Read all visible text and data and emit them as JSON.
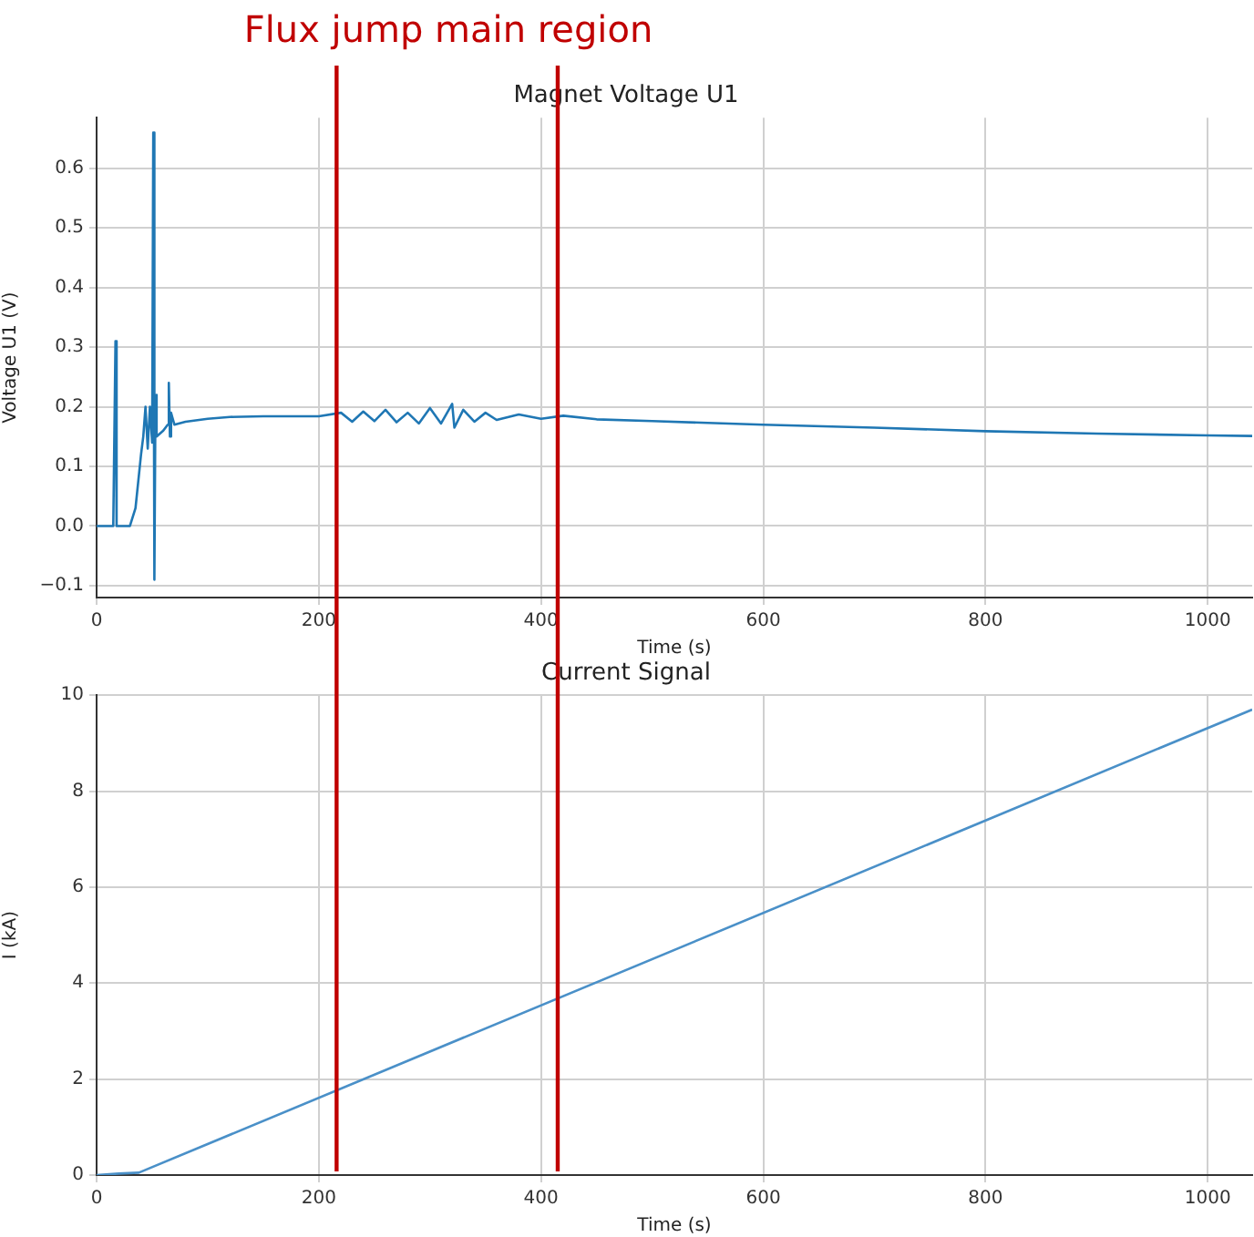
{
  "chart_data": [
    {
      "type": "line",
      "title": "Magnet Voltage U1",
      "xlabel": "Time (s)",
      "ylabel": "Voltage U1 (V)",
      "annotations": [
        "Flux jump main region"
      ],
      "series": [
        {
          "color": "#1f77b4",
          "x": [
            0,
            10,
            15,
            17,
            18,
            20,
            30,
            35,
            40,
            42,
            44,
            46,
            48,
            50,
            51,
            52,
            53,
            54,
            60,
            64,
            65,
            66,
            67,
            70,
            80,
            100,
            120,
            150,
            200,
            220,
            230,
            240,
            250,
            260,
            270,
            280,
            290,
            300,
            310,
            320,
            322,
            330,
            340,
            350,
            360,
            380,
            400,
            420,
            450,
            500,
            550,
            600,
            700,
            800,
            900,
            1000,
            1040
          ],
          "values": [
            0,
            0,
            0,
            0.31,
            0,
            0,
            0,
            0.03,
            0.12,
            0.15,
            0.2,
            0.13,
            0.2,
            0.14,
            0.66,
            -0.09,
            0.22,
            0.15,
            0.16,
            0.17,
            0.24,
            0.15,
            0.19,
            0.17,
            0.175,
            0.18,
            0.183,
            0.184,
            0.184,
            0.19,
            0.175,
            0.192,
            0.176,
            0.195,
            0.174,
            0.19,
            0.172,
            0.198,
            0.172,
            0.205,
            0.165,
            0.195,
            0.175,
            0.19,
            0.178,
            0.187,
            0.18,
            0.185,
            0.179,
            0.176,
            0.173,
            0.17,
            0.165,
            0.159,
            0.155,
            0.152,
            0.151
          ]
        }
      ],
      "xlim": [
        0,
        1040
      ],
      "xticks": [
        0,
        200,
        400,
        600,
        800,
        1000
      ],
      "ylim": [
        -0.12,
        0.685
      ],
      "yticks": [
        {
          "value": -0.1,
          "label": "−0.1"
        },
        {
          "value": 0,
          "label": "0.0"
        },
        0.1,
        0.2,
        0.3,
        0.4,
        0.5,
        0.6
      ],
      "ref_lines": [
        {
          "axis": "x",
          "value": 216,
          "color": "#c00000"
        },
        {
          "axis": "x",
          "value": 415,
          "color": "#c00000"
        }
      ],
      "grid": true,
      "legend": false,
      "marker": "none",
      "line_style": "solid"
    },
    {
      "type": "line",
      "title": "Current Signal",
      "xlabel": "Time (s)",
      "ylabel": "I (kA)",
      "series": [
        {
          "color": "#4a90c8",
          "x": [
            0,
            20,
            38,
            1040
          ],
          "values": [
            0,
            0.03,
            0.05,
            9.7
          ]
        }
      ],
      "xlim": [
        0,
        1040
      ],
      "xticks": [
        0,
        200,
        400,
        600,
        800,
        1000
      ],
      "ylim": [
        0,
        10
      ],
      "yticks": [
        0,
        2,
        4,
        6,
        8,
        10
      ],
      "ref_lines": [
        {
          "axis": "x",
          "value": 216,
          "color": "#c00000"
        },
        {
          "axis": "x",
          "value": 415,
          "color": "#c00000"
        }
      ],
      "grid": true,
      "legend": false,
      "marker": "none",
      "line_style": "solid"
    }
  ]
}
